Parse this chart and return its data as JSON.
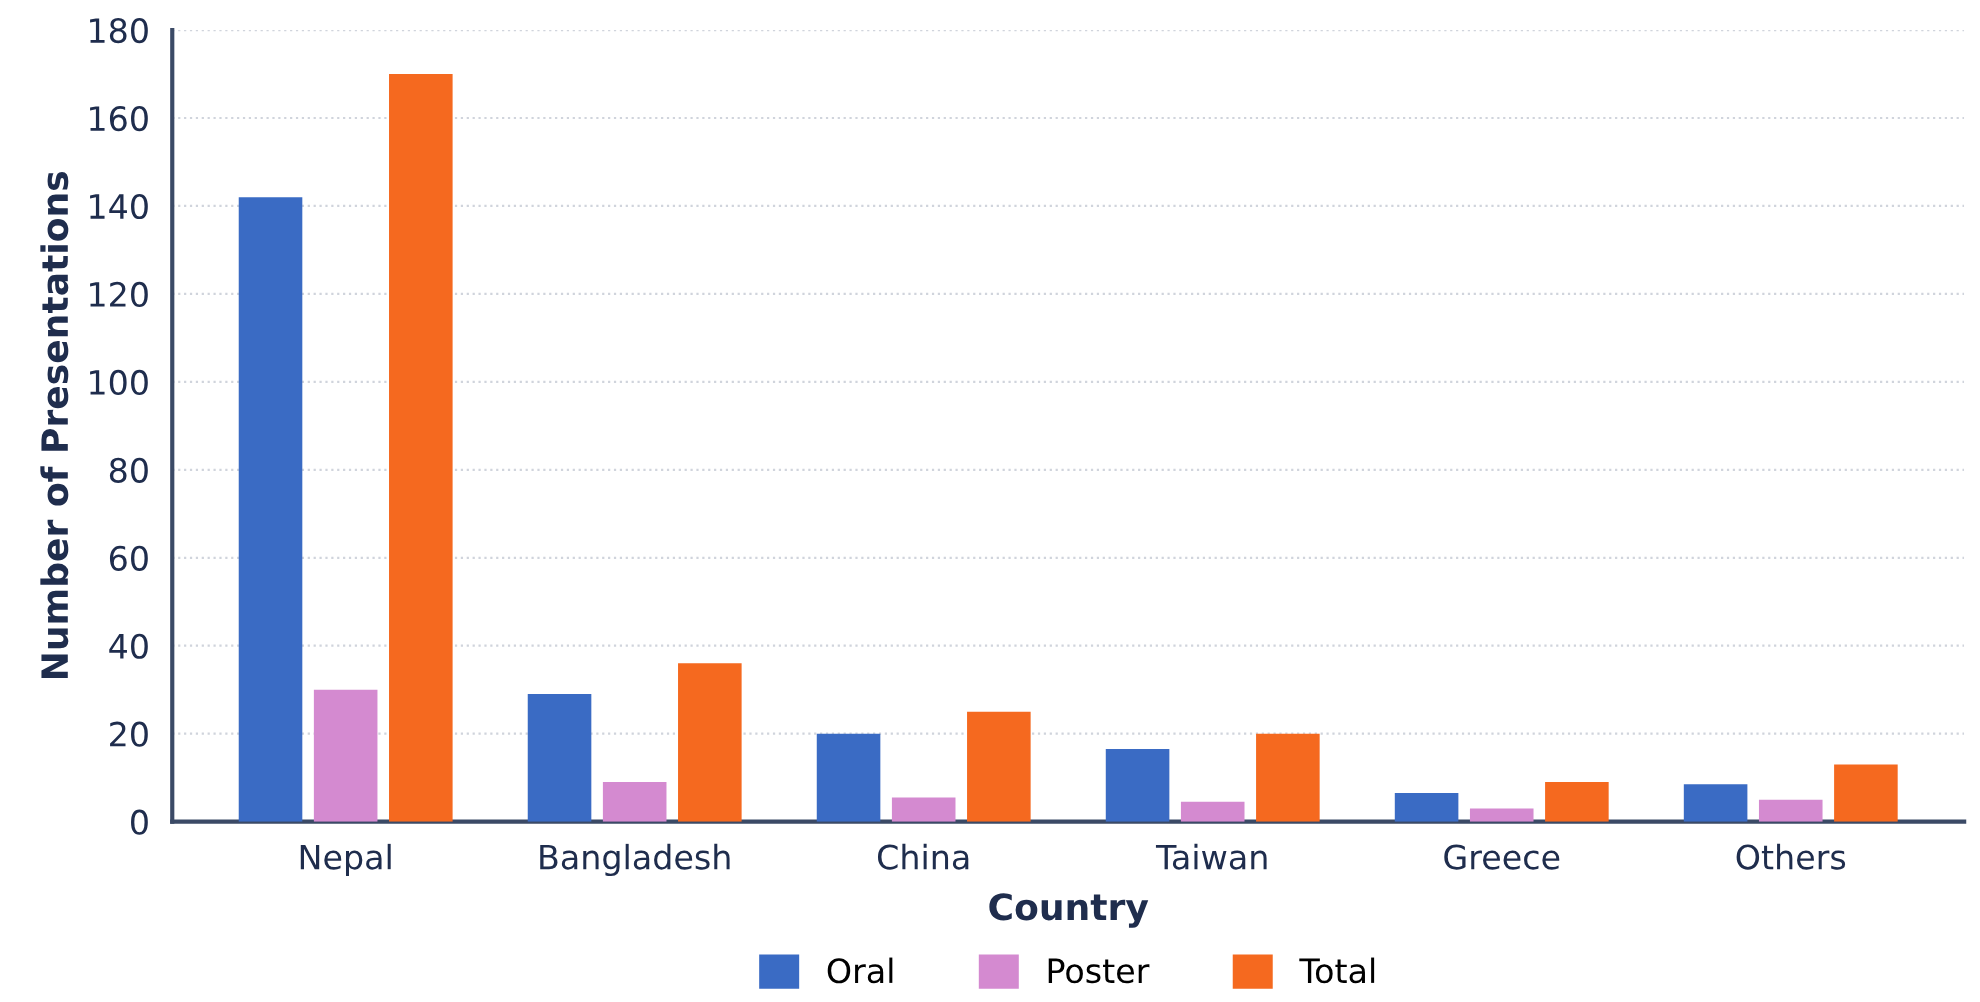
{
  "chart_data": {
    "type": "bar",
    "xlabel": "Country",
    "ylabel": "Number of Presentations",
    "categories": [
      "Nepal",
      "Bangladesh",
      "China",
      "Taiwan",
      "Greece",
      "Others"
    ],
    "series": [
      {
        "name": "Oral",
        "color": "#3a6bc4",
        "values": [
          142,
          29,
          20,
          16.5,
          6.5,
          8.5
        ]
      },
      {
        "name": "Poster",
        "color": "#d48ad0",
        "values": [
          30,
          9,
          5.5,
          4.5,
          3,
          5
        ]
      },
      {
        "name": "Total",
        "color": "#f5691f",
        "values": [
          170,
          36,
          25,
          20,
          9,
          13
        ]
      }
    ],
    "ylim": [
      0,
      180
    ],
    "yticks": [
      0,
      20,
      40,
      60,
      80,
      100,
      120,
      140,
      160,
      180
    ],
    "grid": "y",
    "legend": "bottom"
  }
}
